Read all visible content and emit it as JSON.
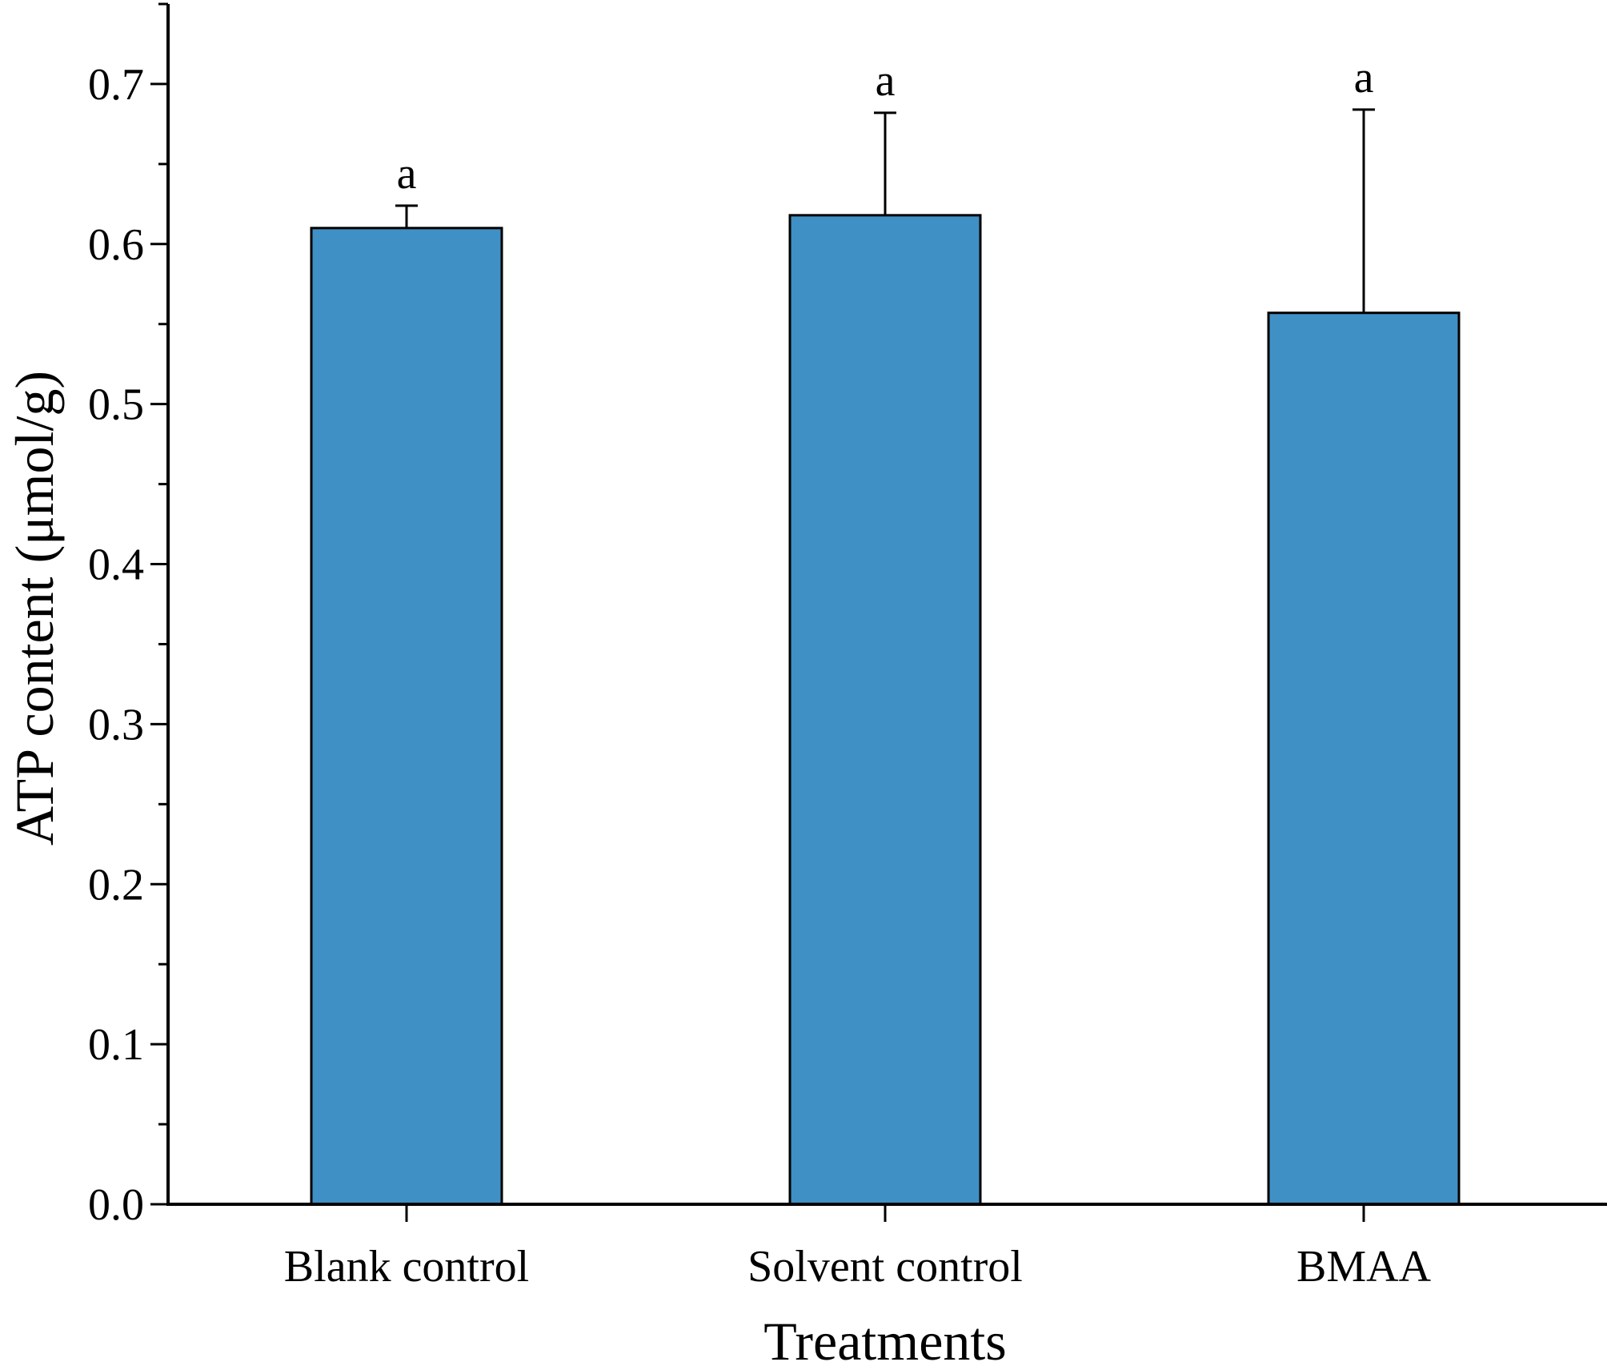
{
  "chart_data": {
    "type": "bar",
    "title": "",
    "xlabel": "Treatments",
    "ylabel": "ATP content (μmol/g)",
    "ylim": [
      0,
      0.75
    ],
    "ytick_step": 0.1,
    "ytick_labels": [
      "0.0",
      "0.1",
      "0.2",
      "0.3",
      "0.4",
      "0.5",
      "0.6",
      "0.7"
    ],
    "categories": [
      "Blank control",
      "Solvent control",
      "BMAA"
    ],
    "values": [
      0.61,
      0.618,
      0.557
    ],
    "errors": [
      0.014,
      0.064,
      0.127
    ],
    "significance": [
      "a",
      "a",
      "a"
    ],
    "bar_color": "#3f90c5",
    "grid": false,
    "legend": "none"
  }
}
